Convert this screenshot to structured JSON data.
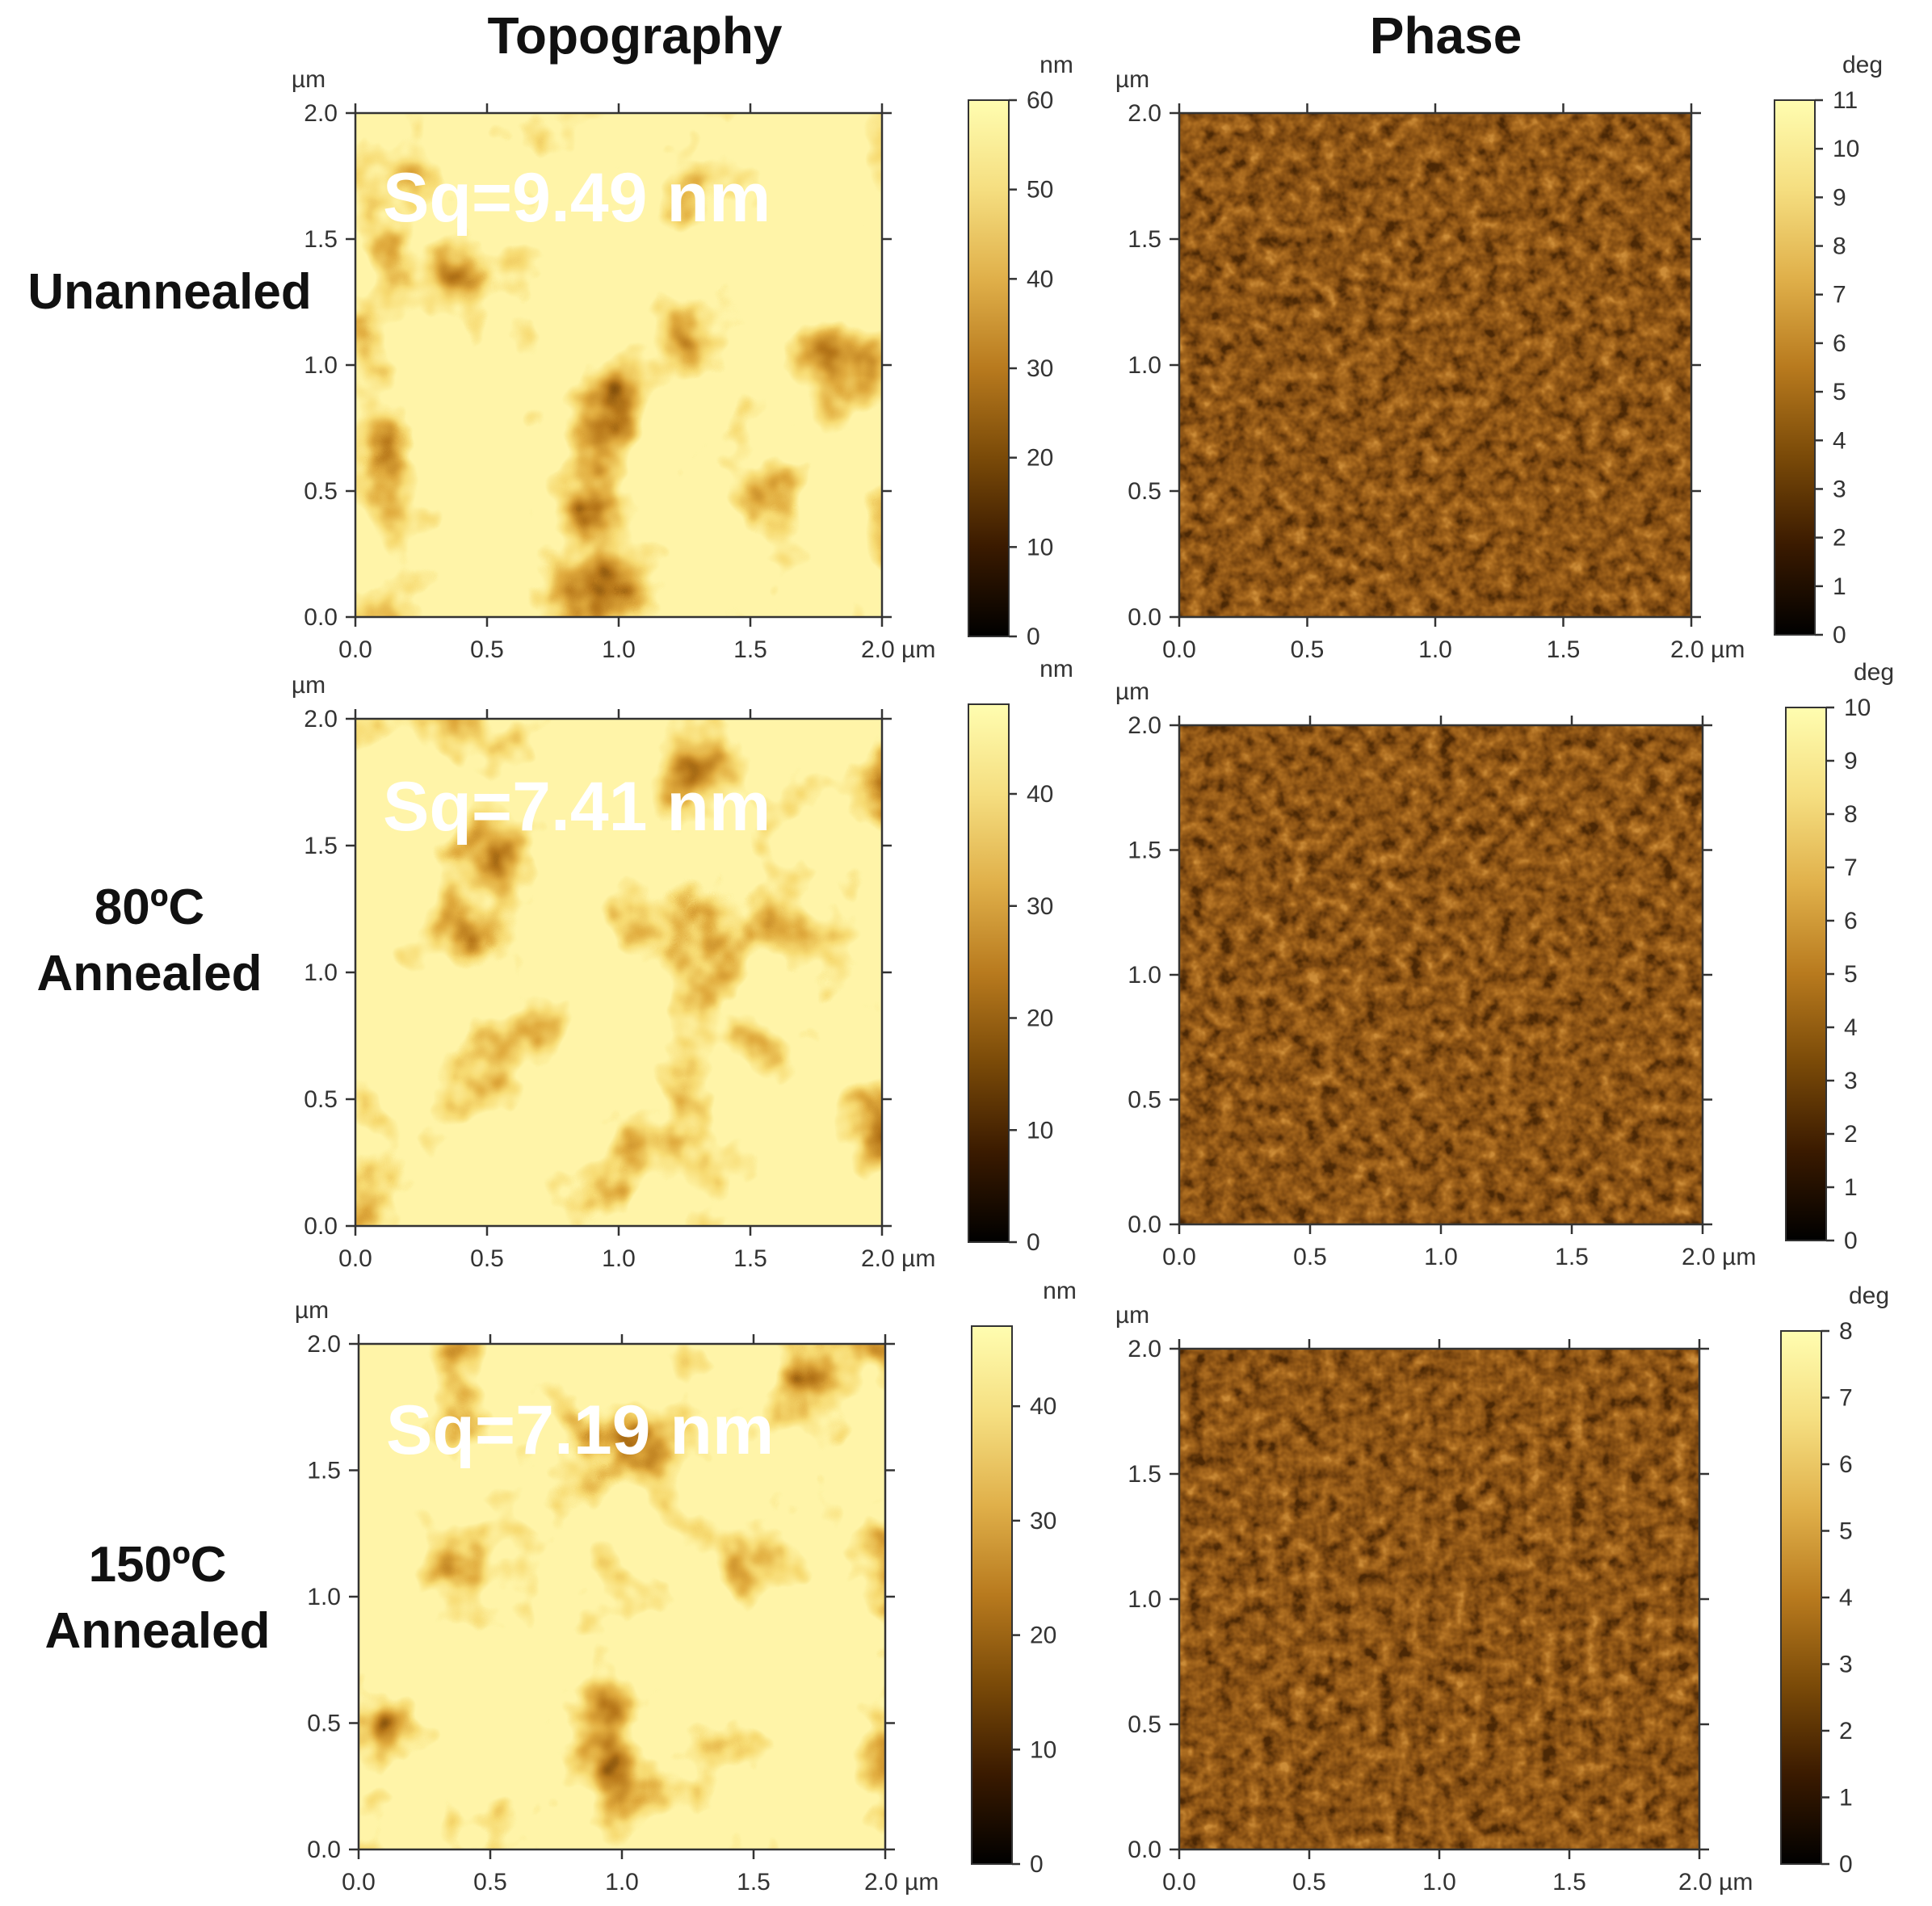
{
  "columns": {
    "topography": "Topography",
    "phase": "Phase"
  },
  "axis_unit": "µm",
  "x_ticks": [
    "0.0",
    "0.5",
    "1.0",
    "1.5",
    "2.0 µm"
  ],
  "y_ticks": [
    "0.0",
    "0.5",
    "1.0",
    "1.5",
    "2.0"
  ],
  "rows": [
    {
      "label_lines": [
        "Unannealed"
      ],
      "sq": "Sq=9.49 nm",
      "topo_unit": "nm",
      "topo_max": 60,
      "topo_ticks": [
        "0",
        "10",
        "20",
        "30",
        "40",
        "50",
        "60"
      ],
      "phase_unit": "deg",
      "phase_max": 11,
      "phase_ticks": [
        "0",
        "1",
        "2",
        "3",
        "4",
        "5",
        "6",
        "7",
        "8",
        "9",
        "10",
        "11"
      ]
    },
    {
      "label_lines": [
        "80ºC",
        "Annealed"
      ],
      "sq": "Sq=7.41 nm",
      "topo_unit": "nm",
      "topo_max": 48,
      "topo_ticks": [
        "0",
        "10",
        "20",
        "30",
        "40"
      ],
      "phase_unit": "deg",
      "phase_max": 10,
      "phase_ticks": [
        "0",
        "1",
        "2",
        "3",
        "4",
        "5",
        "6",
        "7",
        "8",
        "9",
        "10"
      ]
    },
    {
      "label_lines": [
        "150ºC",
        "Annealed"
      ],
      "sq": "Sq=7.19 nm",
      "topo_unit": "nm",
      "topo_max": 47,
      "topo_ticks": [
        "0",
        "10",
        "20",
        "30",
        "40"
      ],
      "phase_unit": "deg",
      "phase_max": 8,
      "phase_ticks": [
        "0",
        "1",
        "2",
        "3",
        "4",
        "5",
        "6",
        "7",
        "8"
      ]
    }
  ],
  "colors": {
    "colormap": [
      "#000000",
      "#3a1a00",
      "#7a4a08",
      "#b87a1e",
      "#e0b04a",
      "#f5de80",
      "#fffdb0"
    ],
    "phase_fill": "#8a5216"
  }
}
